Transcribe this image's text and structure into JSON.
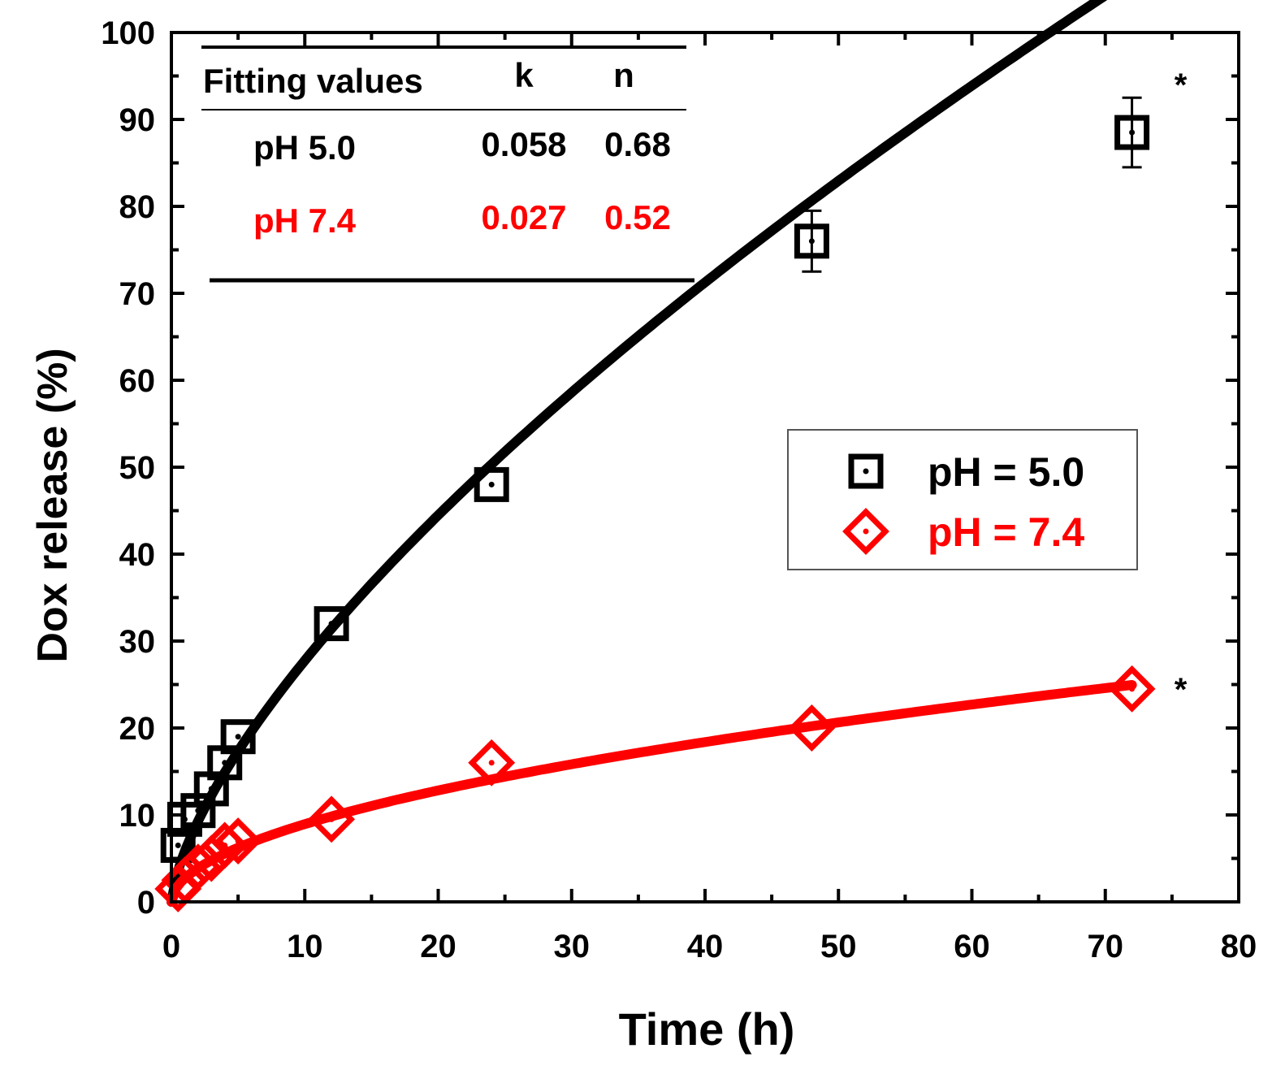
{
  "chart_data": {
    "type": "scatter",
    "xlabel": "Time (h)",
    "ylabel": "Dox release (%)",
    "xlim": [
      0,
      80
    ],
    "ylim": [
      0,
      100
    ],
    "x_ticks": [
      0,
      10,
      20,
      30,
      40,
      50,
      60,
      70,
      80
    ],
    "y_ticks": [
      0,
      10,
      20,
      30,
      40,
      50,
      60,
      70,
      80,
      90,
      100
    ],
    "grid": false,
    "legend_position": "center-right",
    "series": [
      {
        "name": "pH = 5.0",
        "color": "#000000",
        "marker": "square",
        "x": [
          0.5,
          1,
          2,
          3,
          4,
          5,
          12,
          24,
          48,
          72
        ],
        "y": [
          6.5,
          9.5,
          10.5,
          13,
          16,
          19,
          32,
          48,
          76,
          88.5
        ],
        "error": [
          0,
          0,
          0,
          0,
          0,
          0,
          0,
          0,
          3.5,
          4
        ],
        "fit": {
          "k": 0.058,
          "n": 0.68
        },
        "significance": "*"
      },
      {
        "name": "pH = 7.4",
        "color": "#ff0000",
        "marker": "diamond",
        "x": [
          0.5,
          1,
          2,
          3,
          4,
          5,
          12,
          24,
          48,
          72
        ],
        "y": [
          1.5,
          2.5,
          4,
          5,
          6.5,
          7,
          9.5,
          16,
          20,
          24.5
        ],
        "error": [
          0,
          0,
          0,
          0,
          0,
          0,
          0,
          0,
          0,
          0
        ],
        "fit": {
          "k": 0.027,
          "n": 0.52
        },
        "significance": "*"
      }
    ],
    "fit_table": {
      "header": [
        "Fitting values",
        "k",
        "n"
      ],
      "rows": [
        {
          "label": "pH 5.0",
          "k": "0.058",
          "n": "0.68",
          "color": "#000000"
        },
        {
          "label": "pH 7.4",
          "k": "0.027",
          "n": "0.52",
          "color": "#ff0000"
        }
      ]
    }
  }
}
